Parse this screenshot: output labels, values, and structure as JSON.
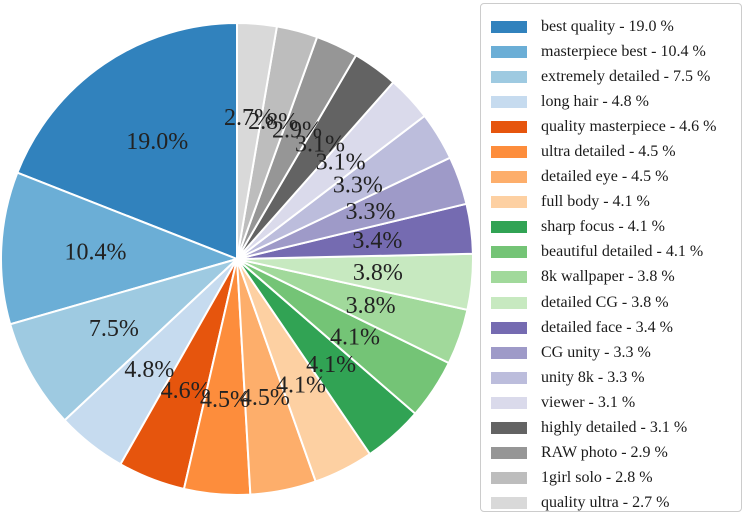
{
  "chart_data": {
    "type": "pie",
    "start_angle_deg": 90,
    "direction": "counterclockwise",
    "legend_placement": "right",
    "slices": [
      {
        "label": "best quality - 19.0 %",
        "value": 19.0,
        "pct_label": "19.0%",
        "color": "#3182bd"
      },
      {
        "label": "masterpiece best - 10.4 %",
        "value": 10.4,
        "pct_label": "10.4%",
        "color": "#6baed6"
      },
      {
        "label": "extremely detailed - 7.5 %",
        "value": 7.5,
        "pct_label": "7.5%",
        "color": "#9ecae1"
      },
      {
        "label": "long hair - 4.8 %",
        "value": 4.8,
        "pct_label": "4.8%",
        "color": "#c6dbef"
      },
      {
        "label": "quality masterpiece - 4.6 %",
        "value": 4.6,
        "pct_label": "4.6%",
        "color": "#e6550d"
      },
      {
        "label": "ultra detailed - 4.5 %",
        "value": 4.5,
        "pct_label": "4.5%",
        "color": "#fd8d3c"
      },
      {
        "label": "detailed eye - 4.5 %",
        "value": 4.5,
        "pct_label": "4.5%",
        "color": "#fdae6b"
      },
      {
        "label": "full body - 4.1 %",
        "value": 4.1,
        "pct_label": "4.1%",
        "color": "#fdd0a2"
      },
      {
        "label": "sharp focus - 4.1 %",
        "value": 4.1,
        "pct_label": "4.1%",
        "color": "#31a354"
      },
      {
        "label": "beautiful detailed - 4.1 %",
        "value": 4.1,
        "pct_label": "4.1%",
        "color": "#74c476"
      },
      {
        "label": "8k wallpaper - 3.8 %",
        "value": 3.8,
        "pct_label": "3.8%",
        "color": "#a1d99b"
      },
      {
        "label": "detailed CG - 3.8 %",
        "value": 3.8,
        "pct_label": "3.8%",
        "color": "#c7e9c0"
      },
      {
        "label": "detailed face - 3.4 %",
        "value": 3.4,
        "pct_label": "3.4%",
        "color": "#756bb1"
      },
      {
        "label": "CG unity - 3.3 %",
        "value": 3.3,
        "pct_label": "3.3%",
        "color": "#9e9ac8"
      },
      {
        "label": "unity 8k - 3.3 %",
        "value": 3.3,
        "pct_label": "3.3%",
        "color": "#bcbddc"
      },
      {
        "label": "viewer - 3.1 %",
        "value": 3.1,
        "pct_label": "3.1%",
        "color": "#dadaeb"
      },
      {
        "label": "highly detailed - 3.1 %",
        "value": 3.1,
        "pct_label": "3.1%",
        "color": "#636363"
      },
      {
        "label": "RAW photo - 2.9 %",
        "value": 2.9,
        "pct_label": "2.9%",
        "color": "#969696"
      },
      {
        "label": "1girl solo - 2.8 %",
        "value": 2.8,
        "pct_label": "2.8%",
        "color": "#bdbdbd"
      },
      {
        "label": "quality ultra - 2.7 %",
        "value": 2.7,
        "pct_label": "2.7%",
        "color": "#d9d9d9"
      }
    ]
  }
}
